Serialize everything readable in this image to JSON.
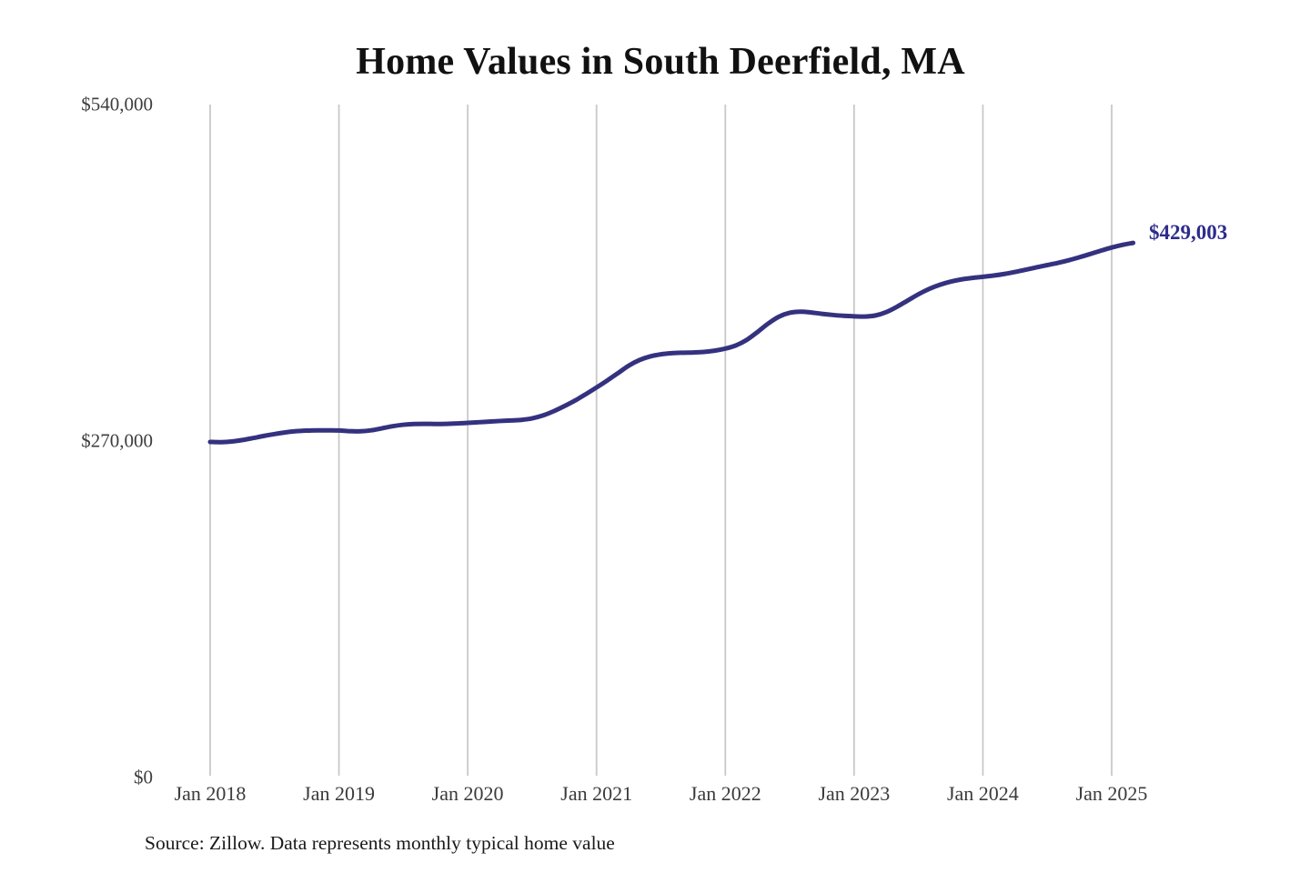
{
  "chart_data": {
    "type": "line",
    "title": "Home Values in South Deerfield, MA",
    "source_note": "Source: Zillow. Data represents monthly typical home value",
    "end_label": "$429,003",
    "end_value": 429003,
    "xlabel": "",
    "ylabel": "",
    "ylim": [
      0,
      540000
    ],
    "grid": "vertical-only",
    "legend_position": "none",
    "y_ticks": [
      {
        "label": "$0",
        "value": 0
      },
      {
        "label": "$270,000",
        "value": 270000
      },
      {
        "label": "$540,000",
        "value": 540000
      }
    ],
    "x_ticks": [
      {
        "label": "Jan 2018",
        "month_index": 0
      },
      {
        "label": "Jan 2019",
        "month_index": 12
      },
      {
        "label": "Jan 2020",
        "month_index": 24
      },
      {
        "label": "Jan 2021",
        "month_index": 36
      },
      {
        "label": "Jan 2022",
        "month_index": 48
      },
      {
        "label": "Jan 2023",
        "month_index": 60
      },
      {
        "label": "Jan 2024",
        "month_index": 72
      },
      {
        "label": "Jan 2025",
        "month_index": 84
      }
    ],
    "series": [
      {
        "name": "Monthly typical home value",
        "start_month": "2018-01",
        "end_month": "2025-03",
        "values": [
          269300,
          269100,
          269600,
          270800,
          272400,
          274100,
          275600,
          276900,
          277900,
          278400,
          278600,
          278600,
          278500,
          277900,
          277800,
          278600,
          280200,
          281900,
          283100,
          283700,
          283800,
          283700,
          283800,
          284100,
          284600,
          285100,
          285600,
          286100,
          286500,
          287000,
          288200,
          290500,
          293900,
          298000,
          302500,
          307600,
          313000,
          318600,
          324500,
          330500,
          335000,
          337900,
          339600,
          340500,
          340900,
          341100,
          341500,
          342500,
          344200,
          346800,
          351200,
          357500,
          364300,
          369800,
          372900,
          373800,
          373200,
          372100,
          371200,
          370500,
          370100,
          369900,
          370800,
          373500,
          377800,
          382800,
          387800,
          392100,
          395400,
          397900,
          399700,
          400900,
          401800,
          402800,
          404100,
          405700,
          407500,
          409400,
          411200,
          413000,
          415100,
          417500,
          420100,
          422800,
          425300,
          427400,
          429003
        ]
      }
    ],
    "colors": {
      "background": "#ffffff",
      "line": "#34327f",
      "end_label": "#2d2c8c",
      "gridline": "#c9c9c9",
      "axis_text": "#3d3d3d",
      "title_text": "#111111",
      "source_text": "#1a1a1a"
    }
  }
}
